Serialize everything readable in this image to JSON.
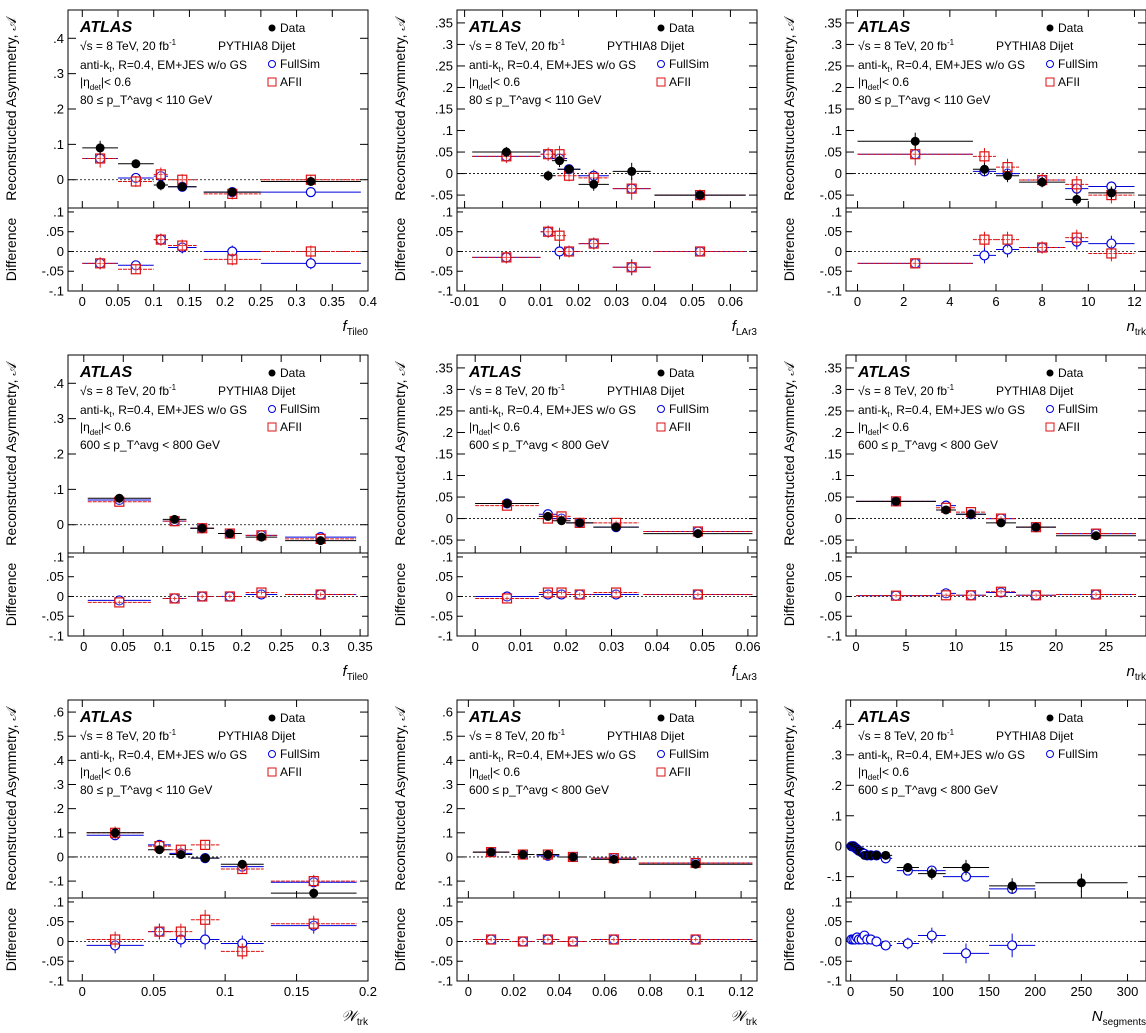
{
  "atlas_label": "ATLAS",
  "energy_label": "√s = 8 TeV, 20 fb",
  "lumi_superscript": "-1",
  "generator_label": "PYTHIA8 Dijet",
  "jet_label": "anti-k",
  "jet_label_sub": "t",
  "jet_label_rest": ", R=0.4, EM+JES w/o GS",
  "eta_label": "|η",
  "eta_sub": "det",
  "eta_rest": "|< 0.6",
  "ylabel_top": "Reconstructed Asymmetry, 𝒜",
  "ylabel_bottom": "Difference",
  "legend": {
    "data": "Data",
    "fullsim": "FullSim",
    "afii": "AFII"
  },
  "colors": {
    "data": "#000000",
    "fullsim": "#0000dd",
    "afii": "#dd1111"
  },
  "chart_data": [
    {
      "type": "scatter",
      "ptbin": "80 ≤ p_T^avg < 110 GeV",
      "xlabel": "f",
      "xsub": "Tile0",
      "xlim": [
        -0.02,
        0.4
      ],
      "xticks": [
        0,
        0.05,
        0.1,
        0.15,
        0.2,
        0.25,
        0.3,
        0.35,
        0.4
      ],
      "ylim_top": [
        -0.08,
        0.48
      ],
      "yticks_top": [
        0,
        0.1,
        0.2,
        0.3,
        0.4
      ],
      "ylim_bottom": [
        -0.1,
        0.11
      ],
      "yticks_bottom": [
        -0.1,
        -0.05,
        0,
        0.05,
        0.1
      ],
      "afii": [
        0.06,
        -0.005,
        0.015,
        0.0,
        -0.04,
        0.0
      ],
      "x": [
        0.025,
        0.075,
        0.11,
        0.14,
        0.21,
        0.32
      ],
      "xerr": [
        0.025,
        0.025,
        0.01,
        0.02,
        0.04,
        0.07
      ],
      "data": [
        0.09,
        0.045,
        -0.015,
        -0.02,
        -0.035,
        -0.005
      ],
      "data_err": [
        0.02,
        0.012,
        0.015,
        0.012,
        0.012,
        0.01
      ],
      "fullsim": [
        0.06,
        0.005,
        0.01,
        -0.02,
        -0.035,
        -0.035
      ],
      "diff_fullsim": [
        -0.03,
        -0.035,
        0.03,
        0.01,
        0.0,
        -0.03
      ],
      "diff_afii": [
        -0.03,
        -0.045,
        0.03,
        0.015,
        -0.02,
        0.0
      ],
      "diff_err": [
        0.015,
        0.012,
        0.015,
        0.015,
        0.015,
        0.015
      ]
    },
    {
      "type": "scatter",
      "ptbin": "80 ≤ p_T^avg < 110 GeV",
      "xlabel": "f",
      "xsub": "LAr3",
      "xlim": [
        -0.012,
        0.067
      ],
      "xticks": [
        -0.01,
        0,
        0.01,
        0.02,
        0.03,
        0.04,
        0.05,
        0.06
      ],
      "ylim_top": [
        -0.08,
        0.38
      ],
      "yticks_top": [
        -0.05,
        0,
        0.05,
        0.1,
        0.15,
        0.2,
        0.25,
        0.3,
        0.35
      ],
      "ylim_bottom": [
        -0.1,
        0.11
      ],
      "yticks_bottom": [
        -0.1,
        -0.05,
        0,
        0.05,
        0.1
      ],
      "afii": [
        0.04,
        0.045,
        0.045,
        -0.005,
        -0.01,
        -0.035,
        -0.05
      ],
      "x": [
        0.001,
        0.012,
        0.015,
        0.0175,
        0.024,
        0.034,
        0.052
      ],
      "xerr": [
        0.009,
        0.002,
        0.002,
        0.003,
        0.004,
        0.005,
        0.012
      ],
      "data": [
        0.05,
        -0.005,
        0.03,
        0.01,
        -0.025,
        0.005,
        -0.05
      ],
      "data_err": [
        0.012,
        0.012,
        0.015,
        0.01,
        0.015,
        0.02,
        0.01
      ],
      "fullsim": [
        0.04,
        0.045,
        0.035,
        0.01,
        -0.005,
        -0.035,
        -0.05
      ],
      "diff_fullsim": [
        -0.015,
        0.05,
        0.0,
        0.0,
        0.02,
        -0.04,
        0.0
      ],
      "diff_afii": [
        -0.015,
        0.05,
        0.04,
        0.0,
        0.02,
        -0.04,
        0.0
      ],
      "diff_err": [
        0.015,
        0.015,
        0.02,
        0.015,
        0.015,
        0.02,
        0.01
      ]
    },
    {
      "type": "scatter",
      "ptbin": "80 ≤ p_T^avg < 110 GeV",
      "xlabel": "n",
      "xsub": "trk",
      "xlim": [
        -0.5,
        12.5
      ],
      "xticks": [
        0,
        2,
        4,
        6,
        8,
        10,
        12
      ],
      "ylim_top": [
        -0.08,
        0.38
      ],
      "yticks_top": [
        -0.05,
        0,
        0.05,
        0.1,
        0.15,
        0.2,
        0.25,
        0.3,
        0.35
      ],
      "ylim_bottom": [
        -0.1,
        0.11
      ],
      "yticks_bottom": [
        -0.1,
        -0.05,
        0,
        0.05,
        0.1
      ],
      "afii": [
        0.045,
        0.04,
        0.015,
        -0.015,
        -0.025,
        -0.05
      ],
      "x": [
        2.5,
        5.5,
        6.5,
        8,
        9.5,
        11
      ],
      "xerr": [
        2.5,
        0.5,
        0.5,
        1,
        0.5,
        1
      ],
      "data": [
        0.075,
        0.01,
        -0.005,
        -0.02,
        -0.06,
        -0.045
      ],
      "data_err": [
        0.02,
        0.015,
        0.015,
        0.012,
        0.015,
        0.015
      ],
      "fullsim": [
        0.045,
        0.005,
        0.0,
        -0.015,
        -0.035,
        -0.03
      ],
      "diff_fullsim": [
        -0.03,
        -0.01,
        0.005,
        0.01,
        0.025,
        0.02
      ],
      "diff_afii": [
        -0.03,
        0.03,
        0.03,
        0.01,
        0.035,
        -0.005
      ],
      "diff_err": [
        0.012,
        0.02,
        0.02,
        0.015,
        0.02,
        0.02
      ]
    },
    {
      "type": "scatter",
      "ptbin": "600 ≤ p_T^avg < 800 GeV",
      "xlabel": "f",
      "xsub": "Tile0",
      "xlim": [
        -0.02,
        0.36
      ],
      "xticks": [
        0,
        0.05,
        0.1,
        0.15,
        0.2,
        0.25,
        0.3,
        0.35
      ],
      "ylim_top": [
        -0.08,
        0.48
      ],
      "yticks_top": [
        0,
        0.1,
        0.2,
        0.3,
        0.4
      ],
      "ylim_bottom": [
        -0.1,
        0.11
      ],
      "yticks_bottom": [
        -0.1,
        -0.05,
        0,
        0.05,
        0.1
      ],
      "afii": [
        0.065,
        0.01,
        -0.01,
        -0.025,
        -0.03,
        -0.04
      ],
      "x": [
        0.045,
        0.115,
        0.15,
        0.185,
        0.225,
        0.3
      ],
      "xerr": [
        0.04,
        0.015,
        0.015,
        0.015,
        0.02,
        0.045
      ],
      "data": [
        0.075,
        0.015,
        -0.01,
        -0.025,
        -0.035,
        -0.045
      ],
      "data_err": [
        0.004,
        0.004,
        0.004,
        0.004,
        0.004,
        0.004
      ],
      "fullsim": [
        0.07,
        0.01,
        -0.01,
        -0.025,
        -0.03,
        -0.035
      ],
      "diff_fullsim": [
        -0.01,
        -0.005,
        0.0,
        0.0,
        0.005,
        0.005
      ],
      "diff_afii": [
        -0.015,
        -0.005,
        0.0,
        0.0,
        0.01,
        0.005
      ],
      "diff_err": [
        0.005,
        0.005,
        0.005,
        0.005,
        0.005,
        0.005
      ]
    },
    {
      "type": "scatter",
      "ptbin": "600 ≤ p_T^avg < 800 GeV",
      "xlabel": "f",
      "xsub": "LAr3",
      "xlim": [
        -0.004,
        0.062
      ],
      "xticks": [
        0,
        0.01,
        0.02,
        0.03,
        0.04,
        0.05,
        0.06
      ],
      "ylim_top": [
        -0.08,
        0.38
      ],
      "yticks_top": [
        -0.05,
        0,
        0.05,
        0.1,
        0.15,
        0.2,
        0.25,
        0.3,
        0.35
      ],
      "ylim_bottom": [
        -0.1,
        0.11
      ],
      "yticks_bottom": [
        -0.1,
        -0.05,
        0,
        0.05,
        0.1
      ],
      "afii": [
        0.03,
        0.0,
        0.005,
        -0.01,
        -0.01,
        -0.03
      ],
      "x": [
        0.007,
        0.016,
        0.019,
        0.023,
        0.031,
        0.049
      ],
      "xerr": [
        0.007,
        0.002,
        0.002,
        0.003,
        0.005,
        0.012
      ],
      "data": [
        0.035,
        0.005,
        -0.005,
        -0.01,
        -0.02,
        -0.035
      ],
      "data_err": [
        0.004,
        0.004,
        0.004,
        0.004,
        0.004,
        0.004
      ],
      "fullsim": [
        0.035,
        0.01,
        0.0,
        -0.01,
        -0.02,
        -0.03
      ],
      "diff_fullsim": [
        0.0,
        0.005,
        0.005,
        0.005,
        0.005,
        0.005
      ],
      "diff_afii": [
        -0.005,
        0.01,
        0.01,
        0.005,
        0.01,
        0.005
      ],
      "diff_err": [
        0.005,
        0.005,
        0.005,
        0.005,
        0.005,
        0.005
      ]
    },
    {
      "type": "scatter",
      "ptbin": "600 ≤ p_T^avg < 800 GeV",
      "xlabel": "n",
      "xsub": "trk",
      "xlim": [
        -1,
        29
      ],
      "xticks": [
        0,
        5,
        10,
        15,
        20,
        25
      ],
      "ylim_top": [
        -0.08,
        0.38
      ],
      "yticks_top": [
        -0.05,
        0,
        0.05,
        0.1,
        0.15,
        0.2,
        0.25,
        0.3,
        0.35
      ],
      "ylim_bottom": [
        -0.1,
        0.11
      ],
      "yticks_bottom": [
        -0.1,
        -0.05,
        0,
        0.05,
        0.1
      ],
      "afii": [
        0.04,
        0.025,
        0.015,
        0.0,
        -0.02,
        -0.035
      ],
      "x": [
        4,
        9,
        11.5,
        14.5,
        18,
        24
      ],
      "xerr": [
        4,
        1,
        1.5,
        1.5,
        2,
        4
      ],
      "data": [
        0.04,
        0.02,
        0.01,
        -0.01,
        -0.02,
        -0.04
      ],
      "data_err": [
        0.004,
        0.004,
        0.004,
        0.004,
        0.004,
        0.004
      ],
      "fullsim": [
        0.04,
        0.03,
        0.01,
        0.0,
        -0.02,
        -0.035
      ],
      "diff_fullsim": [
        0.002,
        0.008,
        0.003,
        0.01,
        0.003,
        0.005
      ],
      "diff_afii": [
        0.002,
        0.003,
        0.003,
        0.012,
        0.003,
        0.005
      ],
      "diff_err": [
        0.005,
        0.005,
        0.005,
        0.005,
        0.005,
        0.005
      ]
    },
    {
      "type": "scatter",
      "ptbin": "80 ≤ p_T^avg < 110 GeV",
      "xlabel": "𝒲",
      "xsub": "trk",
      "xlim": [
        -0.01,
        0.2
      ],
      "xticks": [
        0,
        0.05,
        0.1,
        0.15,
        0.2
      ],
      "ylim_top": [
        -0.17,
        0.65
      ],
      "yticks_top": [
        -0.1,
        0,
        0.1,
        0.2,
        0.3,
        0.4,
        0.5,
        0.6
      ],
      "ylim_bottom": [
        -0.1,
        0.11
      ],
      "yticks_bottom": [
        -0.1,
        -0.05,
        0,
        0.05,
        0.1
      ],
      "afii": [
        0.1,
        0.045,
        0.03,
        0.05,
        -0.05,
        -0.1
      ],
      "x": [
        0.023,
        0.054,
        0.069,
        0.086,
        0.112,
        0.162
      ],
      "xerr": [
        0.02,
        0.008,
        0.008,
        0.01,
        0.015,
        0.03
      ],
      "data": [
        0.1,
        0.03,
        0.01,
        -0.005,
        -0.03,
        -0.15
      ],
      "data_err": [
        0.02,
        0.015,
        0.012,
        0.012,
        0.012,
        0.02
      ],
      "fullsim": [
        0.09,
        0.05,
        0.015,
        -0.005,
        -0.04,
        -0.105
      ],
      "diff_fullsim": [
        -0.01,
        0.025,
        0.005,
        0.005,
        -0.005,
        0.04
      ],
      "diff_afii": [
        0.005,
        0.025,
        0.025,
        0.055,
        -0.025,
        0.045
      ],
      "diff_err": [
        0.02,
        0.02,
        0.02,
        0.025,
        0.02,
        0.02
      ]
    },
    {
      "type": "scatter",
      "ptbin": "600 ≤ p_T^avg < 800 GeV",
      "xlabel": "𝒲",
      "xsub": "trk",
      "xlim": [
        -0.005,
        0.127
      ],
      "xticks": [
        0,
        0.02,
        0.04,
        0.06,
        0.08,
        0.1,
        0.12
      ],
      "ylim_top": [
        -0.17,
        0.65
      ],
      "yticks_top": [
        -0.1,
        0,
        0.1,
        0.2,
        0.3,
        0.4,
        0.5,
        0.6
      ],
      "ylim_bottom": [
        -0.1,
        0.11
      ],
      "yticks_bottom": [
        -0.1,
        -0.05,
        0,
        0.05,
        0.1
      ],
      "afii": [
        0.02,
        0.01,
        0.01,
        0.0,
        -0.005,
        -0.025
      ],
      "x": [
        0.01,
        0.024,
        0.035,
        0.046,
        0.064,
        0.1
      ],
      "xerr": [
        0.008,
        0.005,
        0.005,
        0.006,
        0.01,
        0.025
      ],
      "data": [
        0.02,
        0.01,
        0.01,
        0.0,
        -0.01,
        -0.03
      ],
      "data_err": [
        0.006,
        0.006,
        0.006,
        0.006,
        0.006,
        0.006
      ],
      "fullsim": [
        0.02,
        0.01,
        0.005,
        0.0,
        -0.005,
        -0.025
      ],
      "diff_fullsim": [
        0.005,
        0.0,
        0.005,
        0.0,
        0.005,
        0.005
      ],
      "diff_afii": [
        0.005,
        0.0,
        0.005,
        0.0,
        0.005,
        0.005
      ],
      "diff_err": [
        0.005,
        0.005,
        0.005,
        0.005,
        0.005,
        0.005
      ]
    },
    {
      "type": "scatter",
      "ptbin": "600 ≤ p_T^avg < 800 GeV",
      "xlabel": "N",
      "xsub": "segments",
      "xlim": [
        -5,
        320
      ],
      "xticks": [
        0,
        50,
        100,
        150,
        200,
        250,
        300
      ],
      "ylim_top": [
        -0.17,
        0.48
      ],
      "yticks_top": [
        -0.1,
        0,
        0.1,
        0.2,
        0.3,
        0.4
      ],
      "ylim_bottom": [
        -0.1,
        0.11
      ],
      "yticks_bottom": [
        -0.1,
        -0.05,
        0,
        0.05,
        0.1
      ],
      "afii": false,
      "x": [
        1,
        3,
        5,
        7,
        9,
        12,
        15,
        18,
        22,
        28,
        38,
        62,
        88,
        125,
        175,
        250
      ],
      "xerr": [
        1,
        1,
        1,
        1,
        1,
        2,
        2,
        2,
        3,
        4,
        7,
        12,
        15,
        25,
        25,
        50
      ],
      "data": [
        0.0,
        0.0,
        -0.005,
        -0.01,
        -0.015,
        -0.02,
        -0.03,
        -0.03,
        -0.03,
        -0.03,
        -0.03,
        -0.07,
        -0.09,
        -0.07,
        -0.13,
        -0.12
      ],
      "data_err": [
        0.005,
        0.005,
        0.005,
        0.005,
        0.005,
        0.005,
        0.005,
        0.005,
        0.006,
        0.006,
        0.01,
        0.015,
        0.02,
        0.025,
        0.025,
        0.03
      ],
      "fullsim": [
        0.0,
        0.0,
        -0.005,
        -0.01,
        -0.015,
        -0.02,
        -0.025,
        -0.03,
        -0.03,
        -0.03,
        -0.04,
        -0.08,
        -0.08,
        -0.1,
        -0.14,
        null
      ],
      "diff_fullsim": [
        0.005,
        0.005,
        0.005,
        0.01,
        0.005,
        0.005,
        0.015,
        0.005,
        0.005,
        0.0,
        -0.01,
        -0.005,
        0.015,
        -0.03,
        -0.01,
        null
      ],
      "diff_err": [
        0.005,
        0.005,
        0.005,
        0.005,
        0.005,
        0.005,
        0.01,
        0.01,
        0.01,
        0.01,
        0.01,
        0.015,
        0.02,
        0.025,
        0.03,
        0.03
      ]
    }
  ]
}
